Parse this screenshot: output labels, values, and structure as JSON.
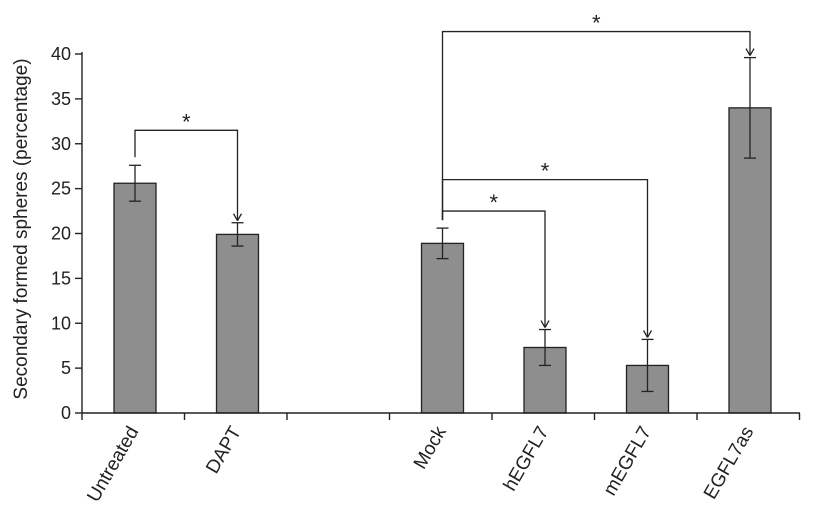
{
  "chart_data": {
    "type": "bar",
    "title": "",
    "xlabel": "",
    "ylabel": "Secondary formed spheres (percentage)",
    "ylim": [
      0,
      40
    ],
    "yticks": [
      0,
      5,
      10,
      15,
      20,
      25,
      30,
      35,
      40
    ],
    "categories": [
      "Untreated",
      "DAPT",
      "",
      "Mock",
      "hEGFL7",
      "mEGFL7",
      "EGFL7as"
    ],
    "values": [
      25.6,
      19.9,
      null,
      18.9,
      7.3,
      5.3,
      34.0
    ],
    "error": [
      2.0,
      1.3,
      null,
      1.7,
      2.0,
      2.9,
      5.6
    ],
    "bar_color": "#8e8e8e",
    "grid": false,
    "significance": [
      {
        "from": "Untreated",
        "to": "DAPT",
        "label": "*",
        "level": 31.5
      },
      {
        "from": "Mock",
        "to": "hEGFL7",
        "label": "*",
        "level": 22.5
      },
      {
        "from": "Mock",
        "to": "mEGFL7",
        "label": "*",
        "level": 26.0
      },
      {
        "from": "Mock",
        "to": "EGFL7as",
        "label": "*",
        "level": 42.5
      }
    ]
  }
}
